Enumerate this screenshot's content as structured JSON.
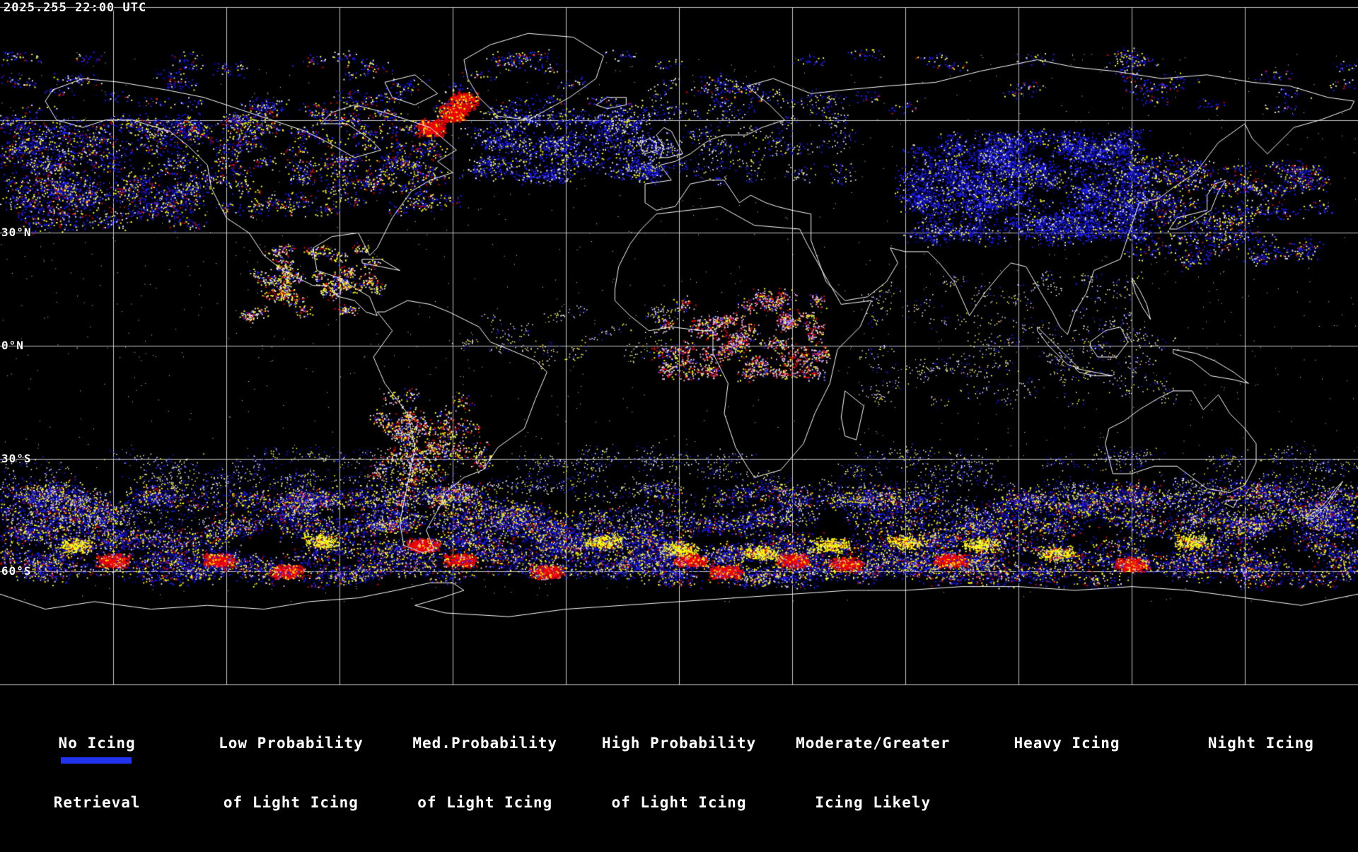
{
  "map": {
    "timestamp": "2025.255 22:00 UTC",
    "background": "#000000",
    "grid_color": "#c8c8c8",
    "coastline_color": "#ffffff",
    "bottom_strip_color": "#2233ee",
    "lat_labels": [
      {
        "text": "30°N",
        "lat": 30
      },
      {
        "text": "0°N",
        "lat": 0
      },
      {
        "text": "30°S",
        "lat": -30
      },
      {
        "text": "60°S",
        "lat": -60
      }
    ],
    "coastlines": [
      [
        [
          -168,
          65
        ],
        [
          -165,
          60
        ],
        [
          -158,
          58
        ],
        [
          -152,
          60
        ],
        [
          -145,
          60
        ],
        [
          -135,
          57
        ],
        [
          -130,
          53
        ],
        [
          -125,
          48
        ],
        [
          -124,
          42
        ],
        [
          -120,
          34
        ],
        [
          -114,
          30
        ],
        [
          -110,
          24
        ],
        [
          -105,
          20
        ],
        [
          -97,
          16
        ],
        [
          -93,
          16
        ],
        [
          -90,
          13
        ],
        [
          -86,
          12
        ],
        [
          -83,
          9
        ],
        [
          -80,
          8
        ],
        [
          -82,
          13
        ],
        [
          -87,
          16
        ],
        [
          -90,
          18
        ],
        [
          -96,
          20
        ],
        [
          -97,
          26
        ],
        [
          -92,
          29
        ],
        [
          -85,
          30
        ],
        [
          -82,
          24
        ],
        [
          -80,
          26
        ],
        [
          -76,
          34
        ],
        [
          -71,
          41
        ],
        [
          -66,
          44
        ],
        [
          -60,
          46
        ],
        [
          -64,
          49
        ],
        [
          -59,
          52
        ],
        [
          -66,
          58
        ],
        [
          -72,
          60
        ],
        [
          -78,
          62
        ],
        [
          -86,
          64
        ],
        [
          -92,
          62
        ],
        [
          -95,
          59
        ],
        [
          -88,
          59
        ],
        [
          -82,
          55
        ],
        [
          -79,
          52
        ],
        [
          -86,
          50
        ],
        [
          -93,
          54
        ],
        [
          -99,
          57
        ],
        [
          -108,
          60
        ],
        [
          -117,
          63
        ],
        [
          -126,
          66
        ],
        [
          -136,
          68
        ],
        [
          -148,
          70
        ],
        [
          -158,
          71
        ],
        [
          -166,
          68
        ],
        [
          -168,
          65
        ]
      ],
      [
        [
          -57,
          76
        ],
        [
          -50,
          80
        ],
        [
          -40,
          83
        ],
        [
          -28,
          82
        ],
        [
          -20,
          77
        ],
        [
          -22,
          71
        ],
        [
          -29,
          66
        ],
        [
          -40,
          60
        ],
        [
          -48,
          61
        ],
        [
          -53,
          66
        ],
        [
          -56,
          71
        ],
        [
          -57,
          76
        ]
      ],
      [
        [
          -78,
          70
        ],
        [
          -70,
          72
        ],
        [
          -64,
          67
        ],
        [
          -70,
          64
        ],
        [
          -76,
          66
        ],
        [
          -78,
          70
        ]
      ],
      [
        [
          -80,
          9
        ],
        [
          -76,
          4
        ],
        [
          -81,
          -3
        ],
        [
          -78,
          -10
        ],
        [
          -72,
          -18
        ],
        [
          -70,
          -27
        ],
        [
          -72,
          -37
        ],
        [
          -74,
          -47
        ],
        [
          -73,
          -53
        ],
        [
          -68,
          -55
        ],
        [
          -65,
          -54
        ],
        [
          -67,
          -49
        ],
        [
          -63,
          -42
        ],
        [
          -62,
          -39
        ],
        [
          -57,
          -35
        ],
        [
          -52,
          -33
        ],
        [
          -48,
          -27
        ],
        [
          -41,
          -22
        ],
        [
          -38,
          -14
        ],
        [
          -35,
          -7
        ],
        [
          -38,
          -4
        ],
        [
          -45,
          -1
        ],
        [
          -50,
          1
        ],
        [
          -53,
          5
        ],
        [
          -61,
          9
        ],
        [
          -66,
          11
        ],
        [
          -72,
          12
        ],
        [
          -78,
          9
        ],
        [
          -80,
          9
        ]
      ],
      [
        [
          -84,
          22
        ],
        [
          -79,
          21
        ],
        [
          -74,
          20
        ],
        [
          -79,
          23
        ],
        [
          -84,
          23
        ],
        [
          -84,
          22
        ]
      ],
      [
        [
          -180,
          -66
        ],
        [
          -168,
          -70
        ],
        [
          -155,
          -68
        ],
        [
          -140,
          -70
        ],
        [
          -125,
          -69
        ],
        [
          -110,
          -70
        ],
        [
          -98,
          -68
        ],
        [
          -85,
          -67
        ],
        [
          -75,
          -65
        ],
        [
          -66,
          -63
        ],
        [
          -60,
          -63
        ],
        [
          -57,
          -65
        ],
        [
          -63,
          -67
        ],
        [
          -70,
          -69
        ],
        [
          -62,
          -71
        ],
        [
          -45,
          -72
        ],
        [
          -30,
          -70
        ],
        [
          -15,
          -69
        ],
        [
          0,
          -68
        ],
        [
          15,
          -67
        ],
        [
          30,
          -66
        ],
        [
          45,
          -65
        ],
        [
          60,
          -65
        ],
        [
          75,
          -64
        ],
        [
          90,
          -64
        ],
        [
          105,
          -65
        ],
        [
          120,
          -64
        ],
        [
          135,
          -65
        ],
        [
          150,
          -67
        ],
        [
          165,
          -69
        ],
        [
          180,
          -66
        ]
      ],
      [
        [
          25,
          71
        ],
        [
          35,
          67
        ],
        [
          44,
          68
        ],
        [
          55,
          69
        ],
        [
          68,
          70
        ],
        [
          80,
          73
        ],
        [
          95,
          76
        ],
        [
          105,
          74
        ],
        [
          115,
          73
        ],
        [
          128,
          71
        ],
        [
          140,
          72
        ],
        [
          152,
          70
        ],
        [
          162,
          69
        ],
        [
          172,
          66
        ],
        [
          179,
          65
        ],
        [
          178,
          63
        ],
        [
          170,
          60
        ],
        [
          163,
          58
        ],
        [
          160,
          55
        ],
        [
          156,
          51
        ],
        [
          152,
          55
        ],
        [
          150,
          59
        ],
        [
          143,
          54
        ],
        [
          137,
          46
        ],
        [
          131,
          42
        ],
        [
          127,
          39
        ],
        [
          122,
          38
        ],
        [
          120,
          32
        ],
        [
          117,
          23
        ],
        [
          110,
          20
        ],
        [
          108,
          14
        ],
        [
          105,
          9
        ],
        [
          103,
          3
        ],
        [
          101,
          5
        ],
        [
          99,
          9
        ],
        [
          96,
          14
        ],
        [
          92,
          21
        ],
        [
          88,
          22
        ],
        [
          86,
          20
        ],
        [
          81,
          14
        ],
        [
          77,
          8
        ],
        [
          73,
          17
        ],
        [
          69,
          22
        ],
        [
          66,
          25
        ],
        [
          60,
          25
        ],
        [
          56,
          26
        ],
        [
          58,
          22
        ],
        [
          55,
          17
        ],
        [
          50,
          13
        ],
        [
          44,
          12
        ],
        [
          39,
          17
        ],
        [
          35,
          28
        ],
        [
          35,
          35
        ],
        [
          30,
          36
        ],
        [
          26,
          37
        ],
        [
          23,
          38
        ],
        [
          19,
          40
        ],
        [
          16,
          38
        ],
        [
          14,
          41
        ],
        [
          12,
          44
        ],
        [
          8,
          44
        ],
        [
          3,
          43
        ],
        [
          -1,
          37
        ],
        [
          -6,
          36
        ],
        [
          -9,
          38
        ],
        [
          -9,
          43
        ],
        [
          -2,
          44
        ],
        [
          -5,
          48
        ],
        [
          -1,
          49
        ],
        [
          3,
          51
        ],
        [
          7,
          54
        ],
        [
          9,
          55
        ],
        [
          12,
          56
        ],
        [
          18,
          56
        ],
        [
          22,
          58
        ],
        [
          28,
          60
        ],
        [
          24,
          64
        ],
        [
          18,
          69
        ],
        [
          25,
          71
        ]
      ],
      [
        [
          -5,
          50
        ],
        [
          -4,
          53
        ],
        [
          -6,
          56
        ],
        [
          -4,
          58
        ],
        [
          -2,
          57
        ],
        [
          0,
          53
        ],
        [
          1,
          51
        ],
        [
          -3,
          50
        ],
        [
          -5,
          50
        ]
      ],
      [
        [
          -10,
          52
        ],
        [
          -10,
          54
        ],
        [
          -8,
          55
        ],
        [
          -6,
          54
        ],
        [
          -6,
          52
        ],
        [
          -9,
          51
        ],
        [
          -10,
          52
        ]
      ],
      [
        [
          -22,
          64
        ],
        [
          -19,
          66
        ],
        [
          -14,
          66
        ],
        [
          -14,
          64
        ],
        [
          -19,
          63
        ],
        [
          -22,
          64
        ]
      ],
      [
        [
          -6,
          35
        ],
        [
          11,
          37
        ],
        [
          20,
          32
        ],
        [
          32,
          31
        ],
        [
          34,
          27
        ],
        [
          43,
          11
        ],
        [
          51,
          12
        ],
        [
          48,
          5
        ],
        [
          42,
          -1
        ],
        [
          40,
          -10
        ],
        [
          36,
          -18
        ],
        [
          33,
          -26
        ],
        [
          27,
          -33
        ],
        [
          20,
          -35
        ],
        [
          18,
          -32
        ],
        [
          15,
          -27
        ],
        [
          12,
          -18
        ],
        [
          13,
          -10
        ],
        [
          9,
          -2
        ],
        [
          9,
          4
        ],
        [
          6,
          4
        ],
        [
          -2,
          5
        ],
        [
          -8,
          4
        ],
        [
          -13,
          8
        ],
        [
          -17,
          12
        ],
        [
          -17,
          15
        ],
        [
          -16,
          21
        ],
        [
          -13,
          27
        ],
        [
          -10,
          31
        ],
        [
          -6,
          35
        ]
      ],
      [
        [
          44,
          -12
        ],
        [
          49,
          -16
        ],
        [
          47,
          -25
        ],
        [
          44,
          -24
        ],
        [
          43,
          -19
        ],
        [
          44,
          -12
        ]
      ],
      [
        [
          130,
          31
        ],
        [
          132,
          34
        ],
        [
          136,
          35
        ],
        [
          140,
          36
        ],
        [
          140,
          40
        ],
        [
          142,
          43
        ],
        [
          145,
          44
        ],
        [
          143,
          41
        ],
        [
          141,
          36
        ],
        [
          136,
          33
        ],
        [
          132,
          31
        ],
        [
          130,
          31
        ]
      ],
      [
        [
          95,
          5
        ],
        [
          99,
          1
        ],
        [
          103,
          -3
        ],
        [
          106,
          -6
        ],
        [
          103,
          -5
        ],
        [
          98,
          0
        ],
        [
          95,
          4
        ],
        [
          95,
          5
        ]
      ],
      [
        [
          109,
          1
        ],
        [
          113,
          4
        ],
        [
          117,
          5
        ],
        [
          119,
          1
        ],
        [
          116,
          -3
        ],
        [
          111,
          -3
        ],
        [
          109,
          0
        ],
        [
          109,
          1
        ]
      ],
      [
        [
          105,
          -6
        ],
        [
          110,
          -7
        ],
        [
          115,
          -8
        ],
        [
          110,
          -8
        ],
        [
          106,
          -7
        ],
        [
          105,
          -6
        ]
      ],
      [
        [
          131,
          -1
        ],
        [
          137,
          -2
        ],
        [
          142,
          -4
        ],
        [
          147,
          -7
        ],
        [
          151,
          -10
        ],
        [
          147,
          -9
        ],
        [
          141,
          -8
        ],
        [
          136,
          -4
        ],
        [
          131,
          -2
        ],
        [
          131,
          -1
        ]
      ],
      [
        [
          120,
          18
        ],
        [
          122,
          15
        ],
        [
          124,
          11
        ],
        [
          125,
          7
        ],
        [
          123,
          10
        ],
        [
          121,
          14
        ],
        [
          120,
          18
        ]
      ],
      [
        [
          114,
          -22
        ],
        [
          113,
          -26
        ],
        [
          115,
          -34
        ],
        [
          120,
          -34
        ],
        [
          126,
          -32
        ],
        [
          132,
          -32
        ],
        [
          136,
          -35
        ],
        [
          140,
          -38
        ],
        [
          146,
          -39
        ],
        [
          150,
          -37
        ],
        [
          153,
          -31
        ],
        [
          153,
          -26
        ],
        [
          150,
          -22
        ],
        [
          146,
          -18
        ],
        [
          143,
          -13
        ],
        [
          139,
          -17
        ],
        [
          136,
          -12
        ],
        [
          131,
          -12
        ],
        [
          127,
          -14
        ],
        [
          122,
          -17
        ],
        [
          118,
          -20
        ],
        [
          114,
          -22
        ]
      ],
      [
        [
          145,
          -41
        ],
        [
          148,
          -41
        ],
        [
          147,
          -43
        ],
        [
          145,
          -42
        ],
        [
          145,
          -41
        ]
      ],
      [
        [
          166,
          -46
        ],
        [
          170,
          -43
        ],
        [
          172,
          -41
        ],
        [
          174,
          -38
        ],
        [
          176,
          -36
        ],
        [
          174,
          -39
        ],
        [
          172,
          -42
        ],
        [
          168,
          -46
        ],
        [
          166,
          -46
        ]
      ]
    ]
  },
  "legend": {
    "items": [
      {
        "line1": "No Icing",
        "line2": "Retrieval",
        "color": "#e6e6e6"
      },
      {
        "line1": "Low Probability",
        "line2": "of Light Icing",
        "color": "#000078"
      },
      {
        "line1": "Med.Probability",
        "line2": "of Light Icing",
        "color": "#1e1eff"
      },
      {
        "line1": "High Probability",
        "line2": "of Light Icing",
        "color": "#ffff00"
      },
      {
        "line1": "Moderate/Greater",
        "line2": "Icing Likely",
        "color": "#ee0000"
      },
      {
        "line1": "Heavy Icing",
        "line2": "",
        "color": "#dda0dd"
      },
      {
        "line1": "Night Icing",
        "line2": "",
        "color": "#00eeee"
      }
    ]
  }
}
